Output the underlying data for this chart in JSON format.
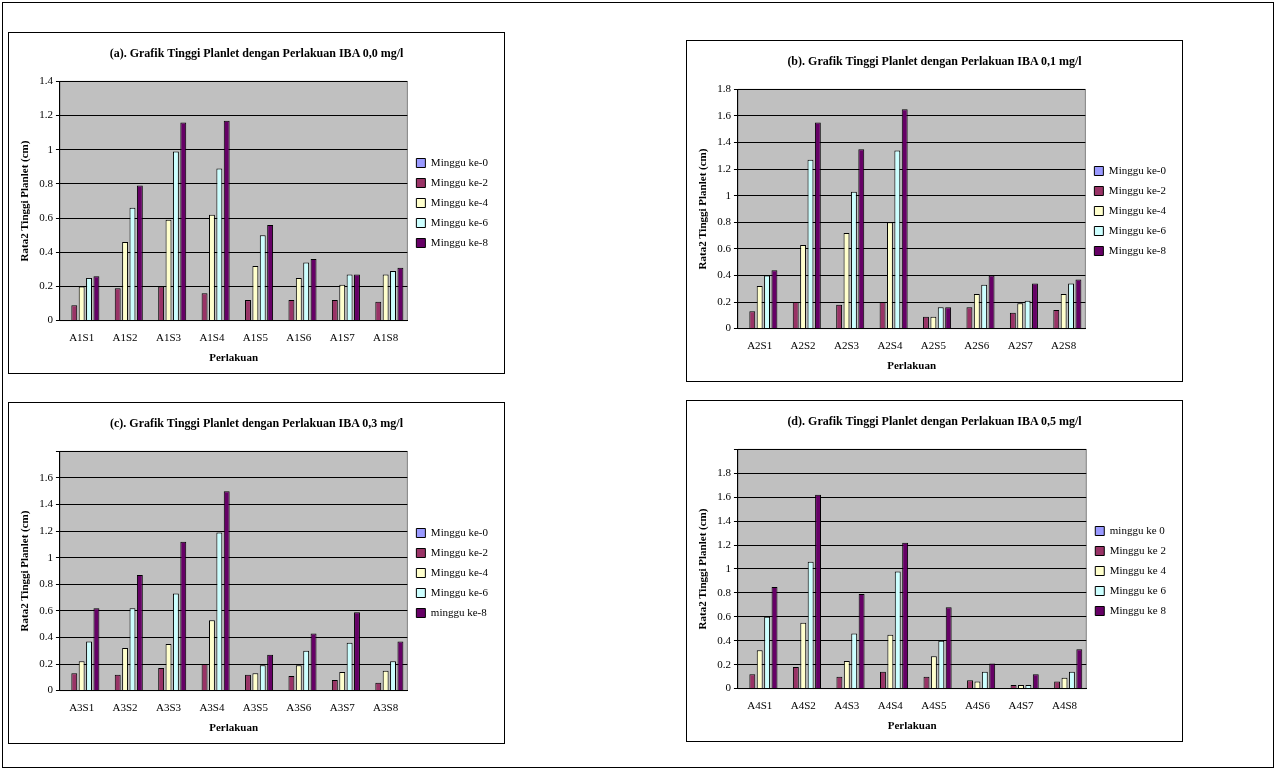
{
  "chart_data": [
    {
      "type": "bar",
      "title": "(a). Grafik Tinggi Planlet dengan Perlakuan IBA 0,0 mg/l",
      "xlabel": "Perlakuan",
      "ylabel": "Rata2 Tinggi Planlet (cm)",
      "categories": [
        "A1S1",
        "A1S2",
        "A1S3",
        "A1S4",
        "A1S5",
        "A1S6",
        "A1S7",
        "A1S8"
      ],
      "series": [
        {
          "name": "Minggu ke-0",
          "color": "#9999ff",
          "values": [
            0,
            0,
            0,
            0,
            0,
            0,
            0,
            0
          ]
        },
        {
          "name": "Minggu ke-2",
          "color": "#993366",
          "values": [
            0.09,
            0.19,
            0.2,
            0.16,
            0.12,
            0.12,
            0.12,
            0.11
          ]
        },
        {
          "name": "Minggu ke-4",
          "color": "#ffffcc",
          "values": [
            0.2,
            0.46,
            0.59,
            0.62,
            0.32,
            0.25,
            0.21,
            0.27
          ]
        },
        {
          "name": "Minggu ke-6",
          "color": "#ccffff",
          "values": [
            0.25,
            0.66,
            0.99,
            0.89,
            0.5,
            0.34,
            0.27,
            0.29
          ]
        },
        {
          "name": "Minggu ke-8",
          "color": "#660066",
          "values": [
            0.26,
            0.79,
            1.16,
            1.17,
            0.56,
            0.36,
            0.27,
            0.31
          ]
        }
      ],
      "ylim": [
        0,
        1.4
      ],
      "yticks": [
        0,
        0.2,
        0.4,
        0.6,
        0.8,
        1,
        1.2,
        1.4
      ],
      "grid": "y",
      "legend": "right"
    },
    {
      "type": "bar",
      "title": "(b). Grafik Tinggi Planlet dengan Perlakuan IBA 0,1 mg/l",
      "xlabel": "Perlakuan",
      "ylabel": "Rata2 Tinggi Planlet (cm)",
      "categories": [
        "A2S1",
        "A2S2",
        "A2S3",
        "A2S4",
        "A2S5",
        "A2S6",
        "A2S7",
        "A2S8"
      ],
      "series": [
        {
          "name": "Minggu ke-0",
          "color": "#9999ff",
          "values": [
            0,
            0,
            0,
            0,
            0,
            0,
            0,
            0
          ]
        },
        {
          "name": "Minggu ke-2",
          "color": "#993366",
          "values": [
            0.13,
            0.2,
            0.18,
            0.2,
            0.09,
            0.16,
            0.12,
            0.14
          ]
        },
        {
          "name": "Minggu ke-4",
          "color": "#ffffcc",
          "values": [
            0.32,
            0.63,
            0.72,
            0.8,
            0.09,
            0.26,
            0.19,
            0.26
          ]
        },
        {
          "name": "Minggu ke-6",
          "color": "#ccffff",
          "values": [
            0.4,
            1.27,
            1.03,
            1.34,
            0.16,
            0.33,
            0.21,
            0.34
          ]
        },
        {
          "name": "Minggu ke-8",
          "color": "#660066",
          "values": [
            0.44,
            1.55,
            1.35,
            1.65,
            0.16,
            0.4,
            0.34,
            0.37
          ]
        }
      ],
      "ylim": [
        0,
        1.8
      ],
      "yticks": [
        0,
        0.2,
        0.4,
        0.6,
        0.8,
        1,
        1.2,
        1.4,
        1.6,
        1.8
      ],
      "grid": "y",
      "legend": "right"
    },
    {
      "type": "bar",
      "title": "(c). Grafik Tinggi Planlet dengan Perlakuan IBA 0,3 mg/l",
      "xlabel": "Perlakuan",
      "ylabel": "Rata2 Tinggi Planlet (cm)",
      "categories": [
        "A3S1",
        "A3S2",
        "A3S3",
        "A3S4",
        "A3S5",
        "A3S6",
        "A3S7",
        "A3S8"
      ],
      "series": [
        {
          "name": "Minggu ke-0",
          "color": "#9999ff",
          "values": [
            0,
            0,
            0,
            0,
            0,
            0,
            0,
            0
          ]
        },
        {
          "name": "Minggu ke-2",
          "color": "#993366",
          "values": [
            0.13,
            0.12,
            0.17,
            0.2,
            0.12,
            0.11,
            0.08,
            0.06
          ]
        },
        {
          "name": "Minggu ke-4",
          "color": "#ffffcc",
          "values": [
            0.22,
            0.32,
            0.35,
            0.53,
            0.13,
            0.19,
            0.14,
            0.15
          ]
        },
        {
          "name": "Minggu ke-6",
          "color": "#ccffff",
          "values": [
            0.37,
            0.62,
            0.73,
            1.19,
            0.19,
            0.3,
            0.36,
            0.22
          ]
        },
        {
          "name": "minggu ke-8",
          "color": "#660066",
          "values": [
            0.62,
            0.87,
            1.12,
            1.5,
            0.27,
            0.43,
            0.59,
            0.37
          ]
        }
      ],
      "ylim": [
        0,
        1.8
      ],
      "yticks": [
        0,
        0.2,
        0.4,
        0.6,
        0.8,
        1,
        1.2,
        1.4,
        1.6,
        {
          "value": 1.8,
          "label": null
        }
      ],
      "grid": "y",
      "legend": "right"
    },
    {
      "type": "bar",
      "title": "(d). Grafik Tinggi Planlet dengan Perlakuan IBA 0,5 mg/l",
      "xlabel": "Perlakuan",
      "ylabel": "Rata2 Tinggi Planlet (cm)",
      "categories": [
        "A4S1",
        "A4S2",
        "A4S3",
        "A4S4",
        "A4S5",
        "A4S6",
        "A4S7",
        "A4S8"
      ],
      "series": [
        {
          "name": "minggu ke 0",
          "color": "#9999ff",
          "values": [
            0,
            0,
            0,
            0,
            0,
            0,
            0,
            0
          ]
        },
        {
          "name": "Minggu ke 2",
          "color": "#993366",
          "values": [
            0.12,
            0.18,
            0.1,
            0.14,
            0.1,
            0.07,
            0.03,
            0.06
          ]
        },
        {
          "name": "Minggu ke 4",
          "color": "#ffffcc",
          "values": [
            0.32,
            0.55,
            0.23,
            0.45,
            0.27,
            0.06,
            0.03,
            0.09
          ]
        },
        {
          "name": "Minggu ke 6",
          "color": "#ccffff",
          "values": [
            0.6,
            1.06,
            0.46,
            0.98,
            0.4,
            0.14,
            0.03,
            0.14
          ]
        },
        {
          "name": "Minggu ke 8",
          "color": "#660066",
          "values": [
            0.85,
            1.62,
            0.79,
            1.22,
            0.68,
            0.21,
            0.12,
            0.33
          ]
        }
      ],
      "ylim": [
        0,
        2
      ],
      "yticks": [
        0,
        0.2,
        0.4,
        0.6,
        0.8,
        1,
        1.2,
        1.4,
        1.6,
        1.8,
        {
          "value": 2,
          "label": null
        }
      ],
      "grid": "y",
      "legend": "right"
    }
  ]
}
